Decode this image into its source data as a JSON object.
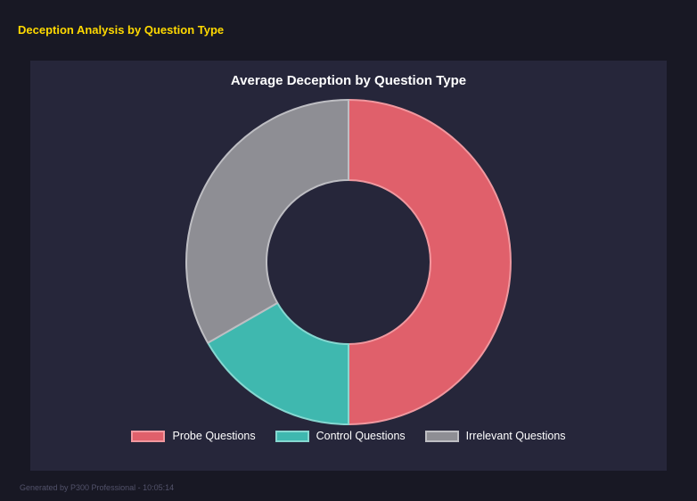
{
  "page": {
    "heading": "Deception Analysis by Question Type",
    "footer": "Generated by P300 Professional - 10:05:14"
  },
  "colors": {
    "background": "#181824",
    "panel": "#26263a",
    "heading": "#ffd900",
    "title_text": "#ffffff",
    "footer_text": "#52526a"
  },
  "chart_data": {
    "type": "pie",
    "donut": true,
    "cutout": "50%",
    "title": "Average Deception by Question Type",
    "legend_position": "bottom",
    "categories": [
      "Probe Questions",
      "Control Questions",
      "Irrelevant Questions"
    ],
    "values": [
      50,
      16.7,
      33.3
    ],
    "segments": [
      {
        "label": "Probe Questions",
        "value": 50,
        "color": "#e0606b",
        "border": "#f0989f"
      },
      {
        "label": "Control Questions",
        "value": 16.7,
        "color": "#3fb8af",
        "border": "#86d7d0"
      },
      {
        "label": "Irrelevant Questions",
        "value": 33.3,
        "color": "#8e8e94",
        "border": "#bebec3"
      }
    ]
  }
}
